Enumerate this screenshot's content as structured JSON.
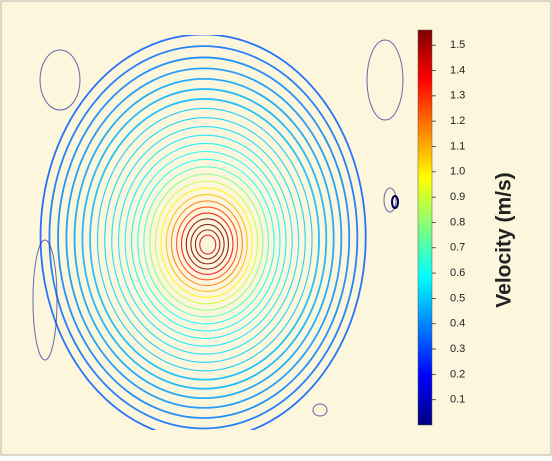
{
  "chart_data": {
    "type": "streamplot",
    "colorbar_label": "Velocity (m/s)",
    "clim": [
      0,
      1.56
    ],
    "colorbar_ticks": [
      0.1,
      0.2,
      0.3,
      0.4,
      0.5,
      0.6,
      0.7,
      0.8,
      0.9,
      {
        "value": 1,
        "label": "1.0"
      },
      1.1,
      1.2,
      1.3,
      1.4,
      1.5
    ],
    "colormap": "jet"
  }
}
